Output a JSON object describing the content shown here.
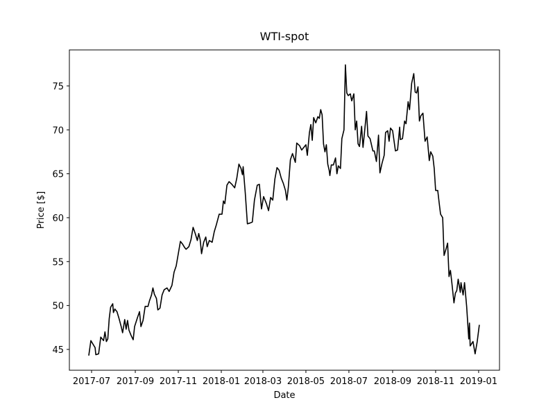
{
  "chart_data": {
    "type": "line",
    "title": "WTI-spot",
    "xlabel": "Date",
    "ylabel": "Price [$]",
    "x": [
      -4,
      -1,
      2,
      5,
      6,
      10,
      13,
      17,
      19,
      21,
      23,
      25,
      27,
      30,
      31,
      33,
      36,
      39,
      42,
      44,
      47,
      49,
      51,
      53,
      56,
      59,
      61,
      65,
      68,
      70,
      73,
      76,
      80,
      82,
      85,
      87,
      89,
      92,
      94,
      97,
      100,
      103,
      107,
      110,
      114,
      117,
      120,
      123,
      126,
      129,
      132,
      134,
      138,
      141,
      144,
      147,
      150,
      152,
      154,
      156,
      159,
      162,
      164,
      167,
      171,
      174,
      177,
      181,
      185,
      187,
      189,
      192,
      195,
      199,
      203,
      206,
      209,
      212,
      214,
      215,
      218,
      221,
      225,
      228,
      231,
      235,
      238,
      241,
      244,
      248,
      251,
      254,
      257,
      260,
      263,
      266,
      269,
      272,
      275,
      277,
      279,
      282,
      285,
      289,
      291,
      295,
      298,
      301,
      304,
      306,
      309,
      311,
      313,
      315,
      318,
      321,
      323,
      325,
      327,
      329,
      331,
      333,
      335,
      337,
      338,
      340,
      343,
      346,
      348,
      350,
      353,
      355,
      358,
      360,
      362,
      364,
      367,
      369,
      372,
      374,
      376,
      378,
      380,
      383,
      385,
      387,
      390,
      392,
      395,
      399,
      401,
      404,
      407,
      409,
      412,
      415,
      417,
      420,
      422,
      424,
      427,
      431,
      434,
      437,
      438,
      441,
      444,
      446,
      449,
      451,
      454,
      457,
      459,
      461,
      463,
      465,
      467,
      470,
      473,
      476,
      479,
      481,
      484,
      486,
      488,
      491,
      493,
      495,
      498,
      500,
      503,
      505,
      507,
      509,
      511,
      514,
      516,
      518,
      520,
      523,
      524,
      527,
      529,
      532,
      535,
      536,
      537,
      541,
      544,
      547,
      550
    ],
    "series": [
      {
        "name": "WTI-spot",
        "color": "#000000",
        "values": [
          44.3,
          46.0,
          45.6,
          45.2,
          44.4,
          44.5,
          46.4,
          46.0,
          47.0,
          45.9,
          46.2,
          48.5,
          49.8,
          50.2,
          49.2,
          49.6,
          49.3,
          48.5,
          47.6,
          46.9,
          48.4,
          47.3,
          48.3,
          47.2,
          46.6,
          46.1,
          47.6,
          48.6,
          49.3,
          47.6,
          48.3,
          49.9,
          49.9,
          50.5,
          51.2,
          52.0,
          51.3,
          50.8,
          49.5,
          49.7,
          51.2,
          51.8,
          52.0,
          51.6,
          52.3,
          53.8,
          54.5,
          55.9,
          57.3,
          57.0,
          56.6,
          56.4,
          56.7,
          57.5,
          58.9,
          58.2,
          57.4,
          58.2,
          57.5,
          55.9,
          57.2,
          57.8,
          56.7,
          57.4,
          57.2,
          58.4,
          59.2,
          60.4,
          60.4,
          61.9,
          61.6,
          63.7,
          64.1,
          63.8,
          63.4,
          64.5,
          66.1,
          65.6,
          64.9,
          65.8,
          62.8,
          59.3,
          59.4,
          59.5,
          62.0,
          63.7,
          63.8,
          61.0,
          62.4,
          61.6,
          60.8,
          62.3,
          62.0,
          64.4,
          65.7,
          65.4,
          64.5,
          63.9,
          63.1,
          62.0,
          63.4,
          66.6,
          67.3,
          66.3,
          68.5,
          68.2,
          67.7,
          68.0,
          68.3,
          67.1,
          69.7,
          70.6,
          68.8,
          71.4,
          70.8,
          71.5,
          71.3,
          72.3,
          71.7,
          68.4,
          67.5,
          68.3,
          66.1,
          65.4,
          64.8,
          66.0,
          66.0,
          66.8,
          65.0,
          65.9,
          65.6,
          69.0,
          70.0,
          77.4,
          74.2,
          73.9,
          74.1,
          73.3,
          74.1,
          70.0,
          71.0,
          68.4,
          68.1,
          70.4,
          68.0,
          69.6,
          72.1,
          69.3,
          69.0,
          67.6,
          67.6,
          66.4,
          69.4,
          65.1,
          66.2,
          67.1,
          69.7,
          69.9,
          68.7,
          70.2,
          69.9,
          67.6,
          67.7,
          70.3,
          68.9,
          69.0,
          71.0,
          70.7,
          73.2,
          72.3,
          75.3,
          76.4,
          74.3,
          74.2,
          74.9,
          71.0,
          71.6,
          71.9,
          68.7,
          69.2,
          66.5,
          67.5,
          67.0,
          65.6,
          63.1,
          63.1,
          61.7,
          60.4,
          60.0,
          55.7,
          56.5,
          57.1,
          53.3,
          54.0,
          52.6,
          50.3,
          51.4,
          51.7,
          53.0,
          51.5,
          52.6,
          51.2,
          52.6,
          49.9,
          46.2,
          48.0,
          45.4,
          45.9,
          44.5,
          45.9,
          47.8
        ]
      }
    ],
    "xlim": [
      -31.5,
      578.6
    ],
    "xticks": [
      {
        "value": 0,
        "label": "2017-07"
      },
      {
        "value": 62,
        "label": "2017-09"
      },
      {
        "value": 123,
        "label": "2017-11"
      },
      {
        "value": 184,
        "label": "2018-01"
      },
      {
        "value": 243,
        "label": "2018-03"
      },
      {
        "value": 304,
        "label": "2018-05"
      },
      {
        "value": 365,
        "label": "2018-07"
      },
      {
        "value": 427,
        "label": "2018-09"
      },
      {
        "value": 488,
        "label": "2018-11"
      },
      {
        "value": 549,
        "label": "2019-01"
      }
    ],
    "ylim": [
      42.63,
      79.1
    ],
    "yticks": [
      45,
      50,
      55,
      60,
      65,
      70,
      75
    ],
    "grid": false
  }
}
